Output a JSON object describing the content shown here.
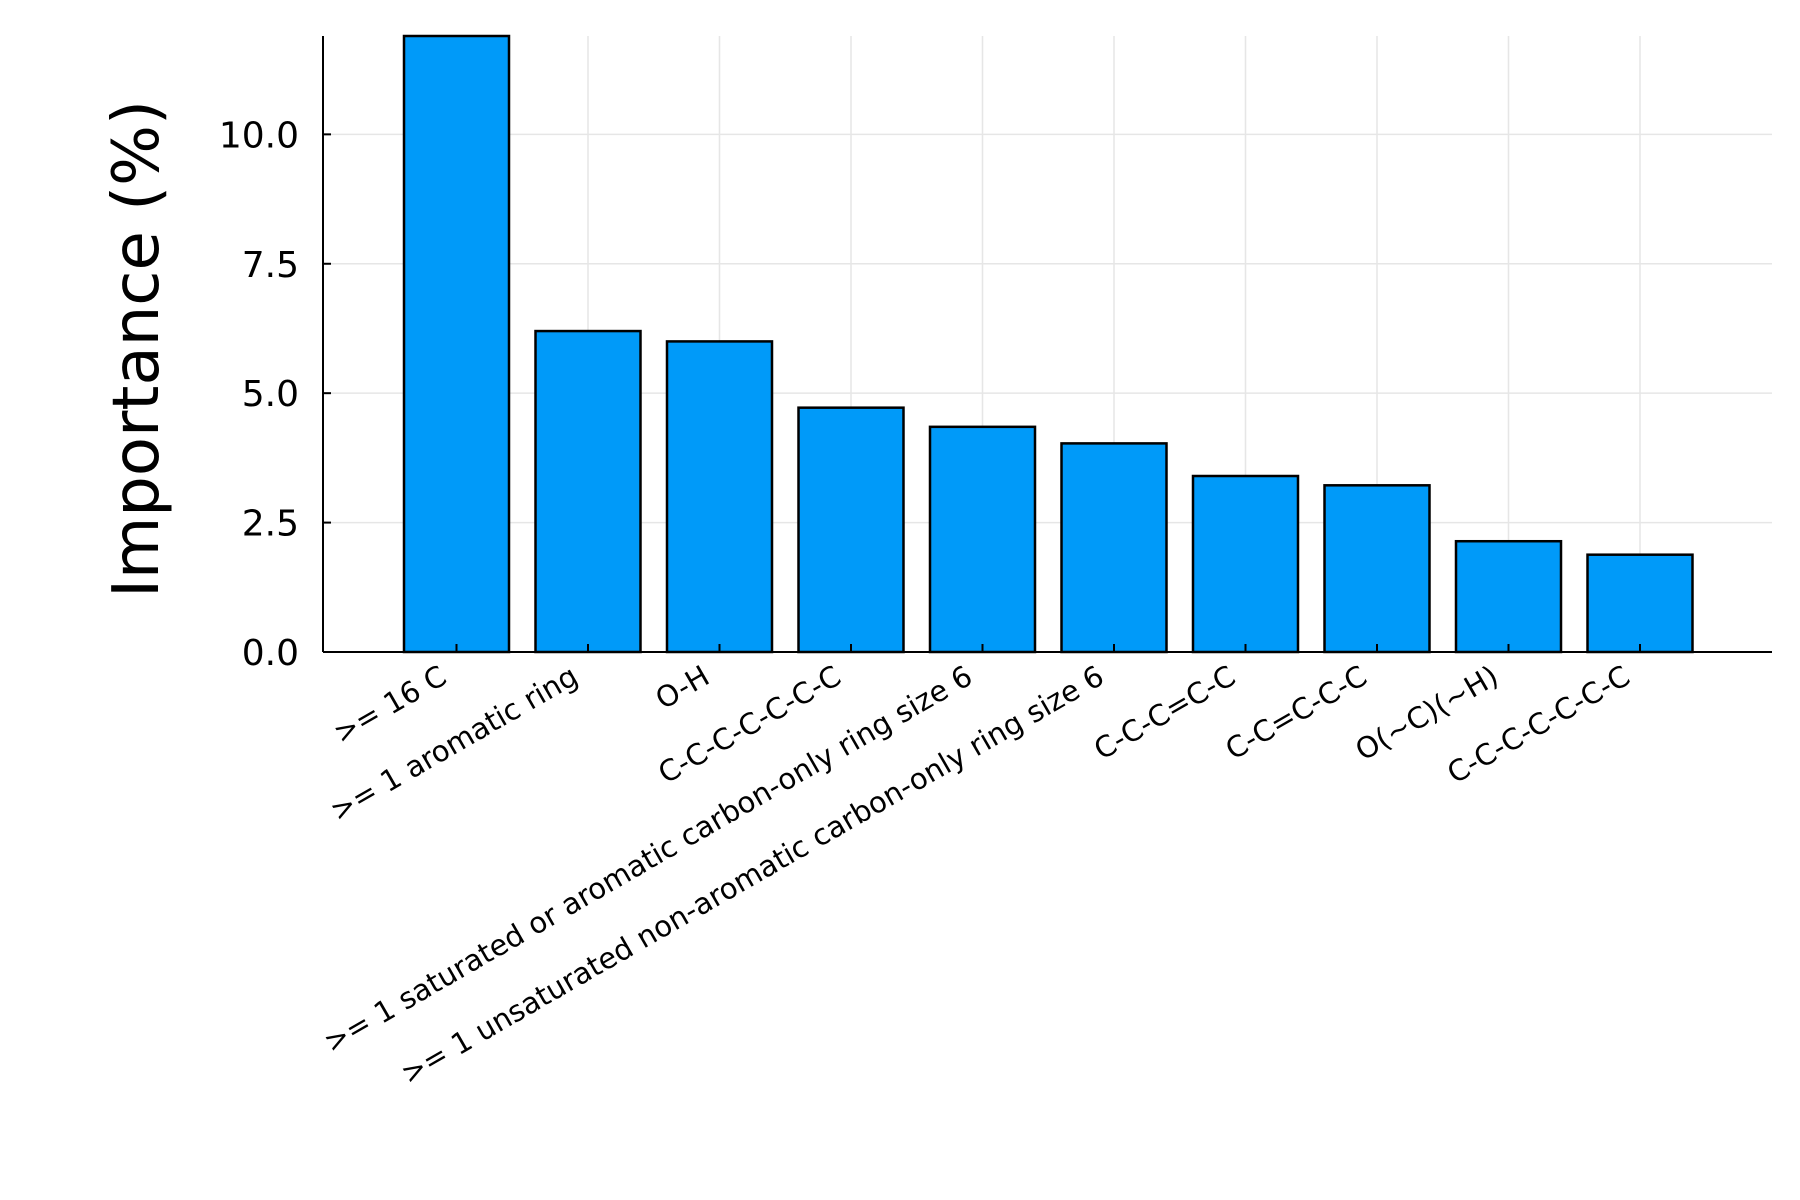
{
  "chart_data": {
    "type": "bar",
    "title": "",
    "xlabel": "",
    "ylabel": "Importance (%)",
    "categories": [
      ">= 16 C",
      ">= 1 aromatic ring",
      "O-H",
      "C-C-C-C-C-C-C",
      ">= 1 saturated or aromatic carbon-only ring size 6",
      ">= 1 unsaturated non-aromatic carbon-only ring size 6",
      "C-C-C=C-C",
      "C-C=C-C-C",
      "O(~C)(~H)",
      "C-C-C-C-C-C-C"
    ],
    "values": [
      11.9,
      6.2,
      6.0,
      4.72,
      4.35,
      4.03,
      3.4,
      3.22,
      2.14,
      1.88
    ],
    "ylim": [
      0,
      11.9
    ],
    "yticks": [
      0.0,
      2.5,
      5.0,
      7.5,
      10.0
    ],
    "ytick_labels": [
      "0.0",
      "2.5",
      "5.0",
      "7.5",
      "10.0"
    ],
    "grid": true,
    "legend": false,
    "bar_color": "#009af9",
    "edge_color": "#000000"
  }
}
